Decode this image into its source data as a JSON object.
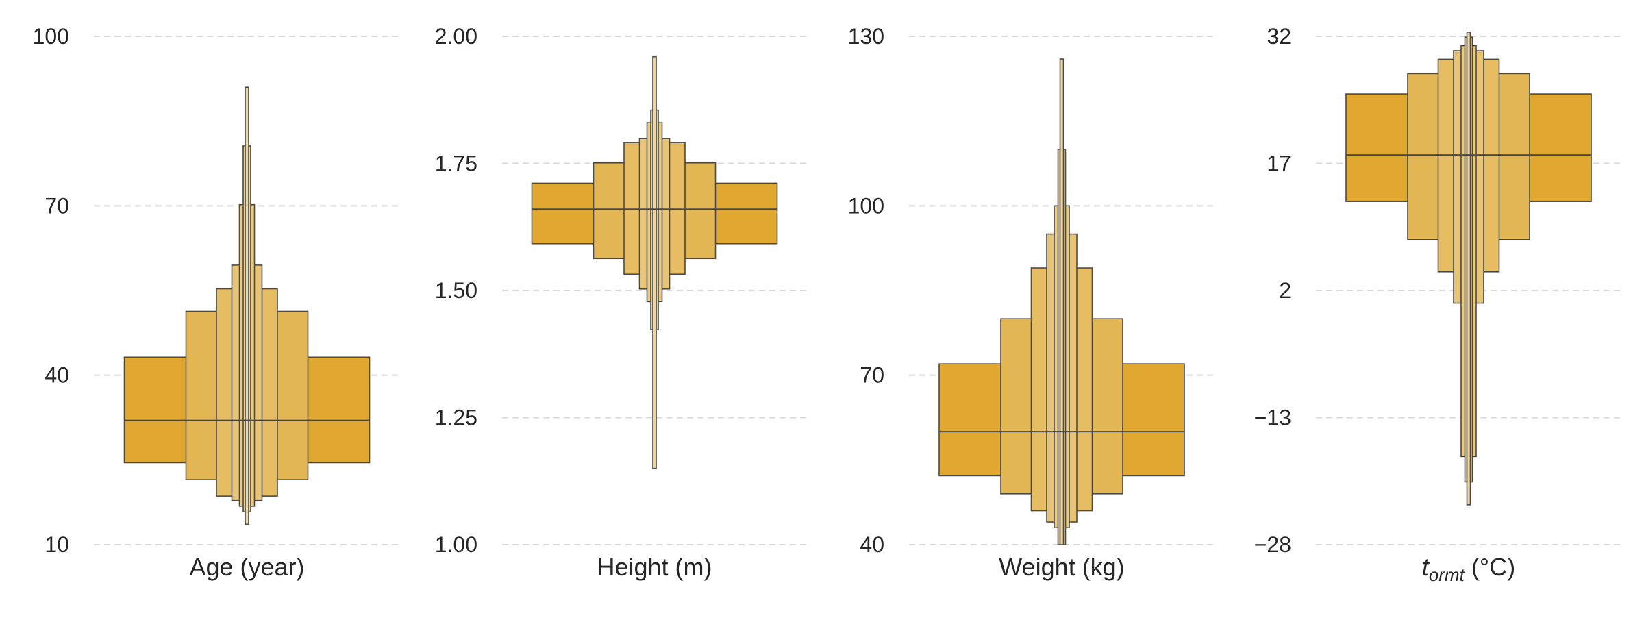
{
  "chart_data": [
    {
      "type": "boxen",
      "xlabel": "Age (year)",
      "ylim": [
        10,
        100
      ],
      "yticks": [
        10,
        40,
        70,
        100
      ],
      "ytick_labels": [
        "10",
        "40",
        "70",
        "100"
      ],
      "grid": "horizontal dashed",
      "color": "#e0a831",
      "median": 32,
      "boxes": [
        {
          "low": 24.5,
          "high": 43.2,
          "width_frac": 0.8
        },
        {
          "low": 21.5,
          "high": 51.3,
          "width_frac": 0.4
        },
        {
          "low": 18.6,
          "high": 55.3,
          "width_frac": 0.2
        },
        {
          "low": 17.8,
          "high": 59.5,
          "width_frac": 0.1
        },
        {
          "low": 16.8,
          "high": 70.2,
          "width_frac": 0.05
        },
        {
          "low": 15.8,
          "high": 80.6,
          "width_frac": 0.025
        },
        {
          "low": 13.6,
          "high": 91.0,
          "width_frac": 0.0125
        }
      ]
    },
    {
      "type": "boxen",
      "xlabel": "Height (m)",
      "ylim": [
        1.0,
        2.0
      ],
      "yticks": [
        1.0,
        1.25,
        1.5,
        1.75,
        2.0
      ],
      "ytick_labels": [
        "1.00",
        "1.25",
        "1.50",
        "1.75",
        "2.00"
      ],
      "grid": "horizontal dashed",
      "color": "#e0a831",
      "median": 1.66,
      "boxes": [
        {
          "low": 1.592,
          "high": 1.711,
          "width_frac": 0.8
        },
        {
          "low": 1.563,
          "high": 1.751,
          "width_frac": 0.4
        },
        {
          "low": 1.532,
          "high": 1.791,
          "width_frac": 0.2
        },
        {
          "low": 1.503,
          "high": 1.799,
          "width_frac": 0.1
        },
        {
          "low": 1.478,
          "high": 1.83,
          "width_frac": 0.05
        },
        {
          "low": 1.423,
          "high": 1.855,
          "width_frac": 0.025
        },
        {
          "low": 1.15,
          "high": 1.96,
          "width_frac": 0.0125
        }
      ]
    },
    {
      "type": "boxen",
      "xlabel": "Weight (kg)",
      "ylim": [
        40,
        130
      ],
      "yticks": [
        40,
        70,
        100,
        130
      ],
      "ytick_labels": [
        "40",
        "70",
        "100",
        "130"
      ],
      "grid": "horizontal dashed",
      "color": "#e0a831",
      "median": 60,
      "boxes": [
        {
          "low": 52.2,
          "high": 72.0,
          "width_frac": 0.8
        },
        {
          "low": 49.0,
          "high": 80.0,
          "width_frac": 0.4
        },
        {
          "low": 46.0,
          "high": 89.0,
          "width_frac": 0.2
        },
        {
          "low": 44.0,
          "high": 95.0,
          "width_frac": 0.1
        },
        {
          "low": 43.0,
          "high": 100.0,
          "width_frac": 0.05
        },
        {
          "low": 40.0,
          "high": 110.0,
          "width_frac": 0.025
        },
        {
          "low": 40.0,
          "high": 126.0,
          "width_frac": 0.0125
        }
      ]
    },
    {
      "type": "boxen",
      "xlabel_main": "t",
      "xlabel_sub": "ormt",
      "xlabel_unit": " (°C)",
      "ylim": [
        -28,
        32
      ],
      "yticks": [
        -28,
        -13,
        2,
        17,
        32
      ],
      "ytick_labels": [
        "−28",
        "−13",
        "2",
        "17",
        "32"
      ],
      "grid": "horizontal dashed",
      "color": "#e0a831",
      "median": 18.0,
      "boxes": [
        {
          "low": 12.5,
          "high": 25.2,
          "width_frac": 0.8
        },
        {
          "low": 8.0,
          "high": 27.6,
          "width_frac": 0.4
        },
        {
          "low": 4.2,
          "high": 29.3,
          "width_frac": 0.2
        },
        {
          "low": 0.5,
          "high": 30.3,
          "width_frac": 0.1
        },
        {
          "low": -17.6,
          "high": 30.9,
          "width_frac": 0.05
        },
        {
          "low": -20.6,
          "high": 31.9,
          "width_frac": 0.025
        },
        {
          "low": -23.3,
          "high": 32.5,
          "width_frac": 0.0125
        }
      ]
    }
  ]
}
